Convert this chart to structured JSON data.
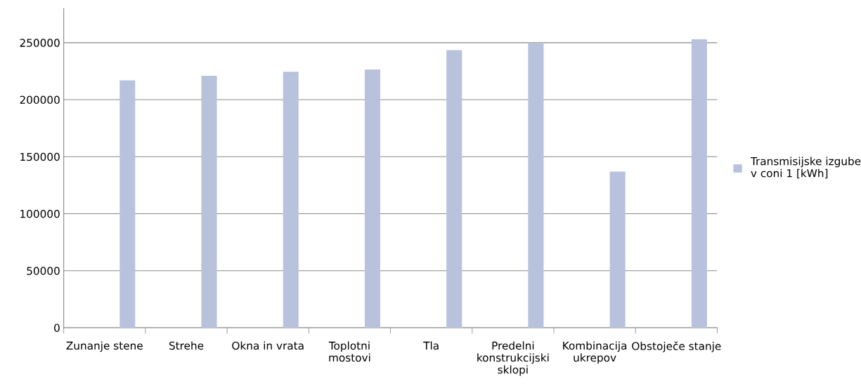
{
  "chart_data": {
    "type": "bar",
    "categories": [
      "Zunanje stene",
      "Strehe",
      "Okna in vrata",
      "Toplotni\nmostovi",
      "Tla",
      "Predelni\nkonstrukcijski\nsklopi",
      "Kombinacija\nukrepov",
      "Obstoječe stanje"
    ],
    "series": [
      {
        "name": "Transmisijske izgube\nv coni 1 [kWh]",
        "color": "#b8c2dd",
        "values": [
          217000,
          221000,
          224500,
          226500,
          243500,
          249500,
          137000,
          253000
        ]
      }
    ],
    "ylim": [
      0,
      280000
    ],
    "yticks": [
      0,
      50000,
      100000,
      150000,
      200000,
      250000
    ],
    "grid": "y",
    "legend": "right"
  }
}
